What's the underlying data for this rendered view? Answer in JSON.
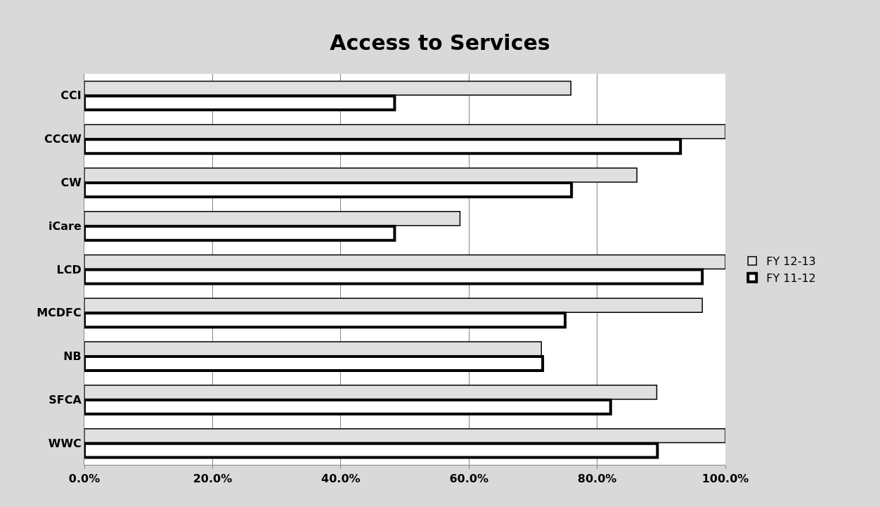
{
  "chart_data": {
    "type": "bar",
    "orientation": "horizontal",
    "title": "Access to Services",
    "categories": [
      "CCI",
      "CCCW",
      "CW",
      "iCare",
      "LCD",
      "MCDFC",
      "NB",
      "SFCA",
      "WWC"
    ],
    "series": [
      {
        "name": "FY 12-13",
        "color": "#e0e0e0",
        "values": [
          75.9,
          100,
          86.2,
          58.6,
          100,
          96.4,
          71.3,
          89.3,
          100
        ]
      },
      {
        "name": "FY 11-12",
        "color": "#000000",
        "values": [
          48.4,
          93.0,
          76.0,
          48.4,
          96.4,
          75.0,
          71.5,
          82.1,
          89.4
        ]
      }
    ],
    "xlim": [
      0,
      100
    ],
    "xticks": [
      {
        "value": 0,
        "label": "0.0%"
      },
      {
        "value": 20,
        "label": "20.0%"
      },
      {
        "value": 40,
        "label": "40.0%"
      },
      {
        "value": 60,
        "label": "60.0%"
      },
      {
        "value": 80,
        "label": "80.0%"
      },
      {
        "value": 100,
        "label": "100.0%"
      }
    ],
    "grid": "x",
    "legend": "right"
  }
}
